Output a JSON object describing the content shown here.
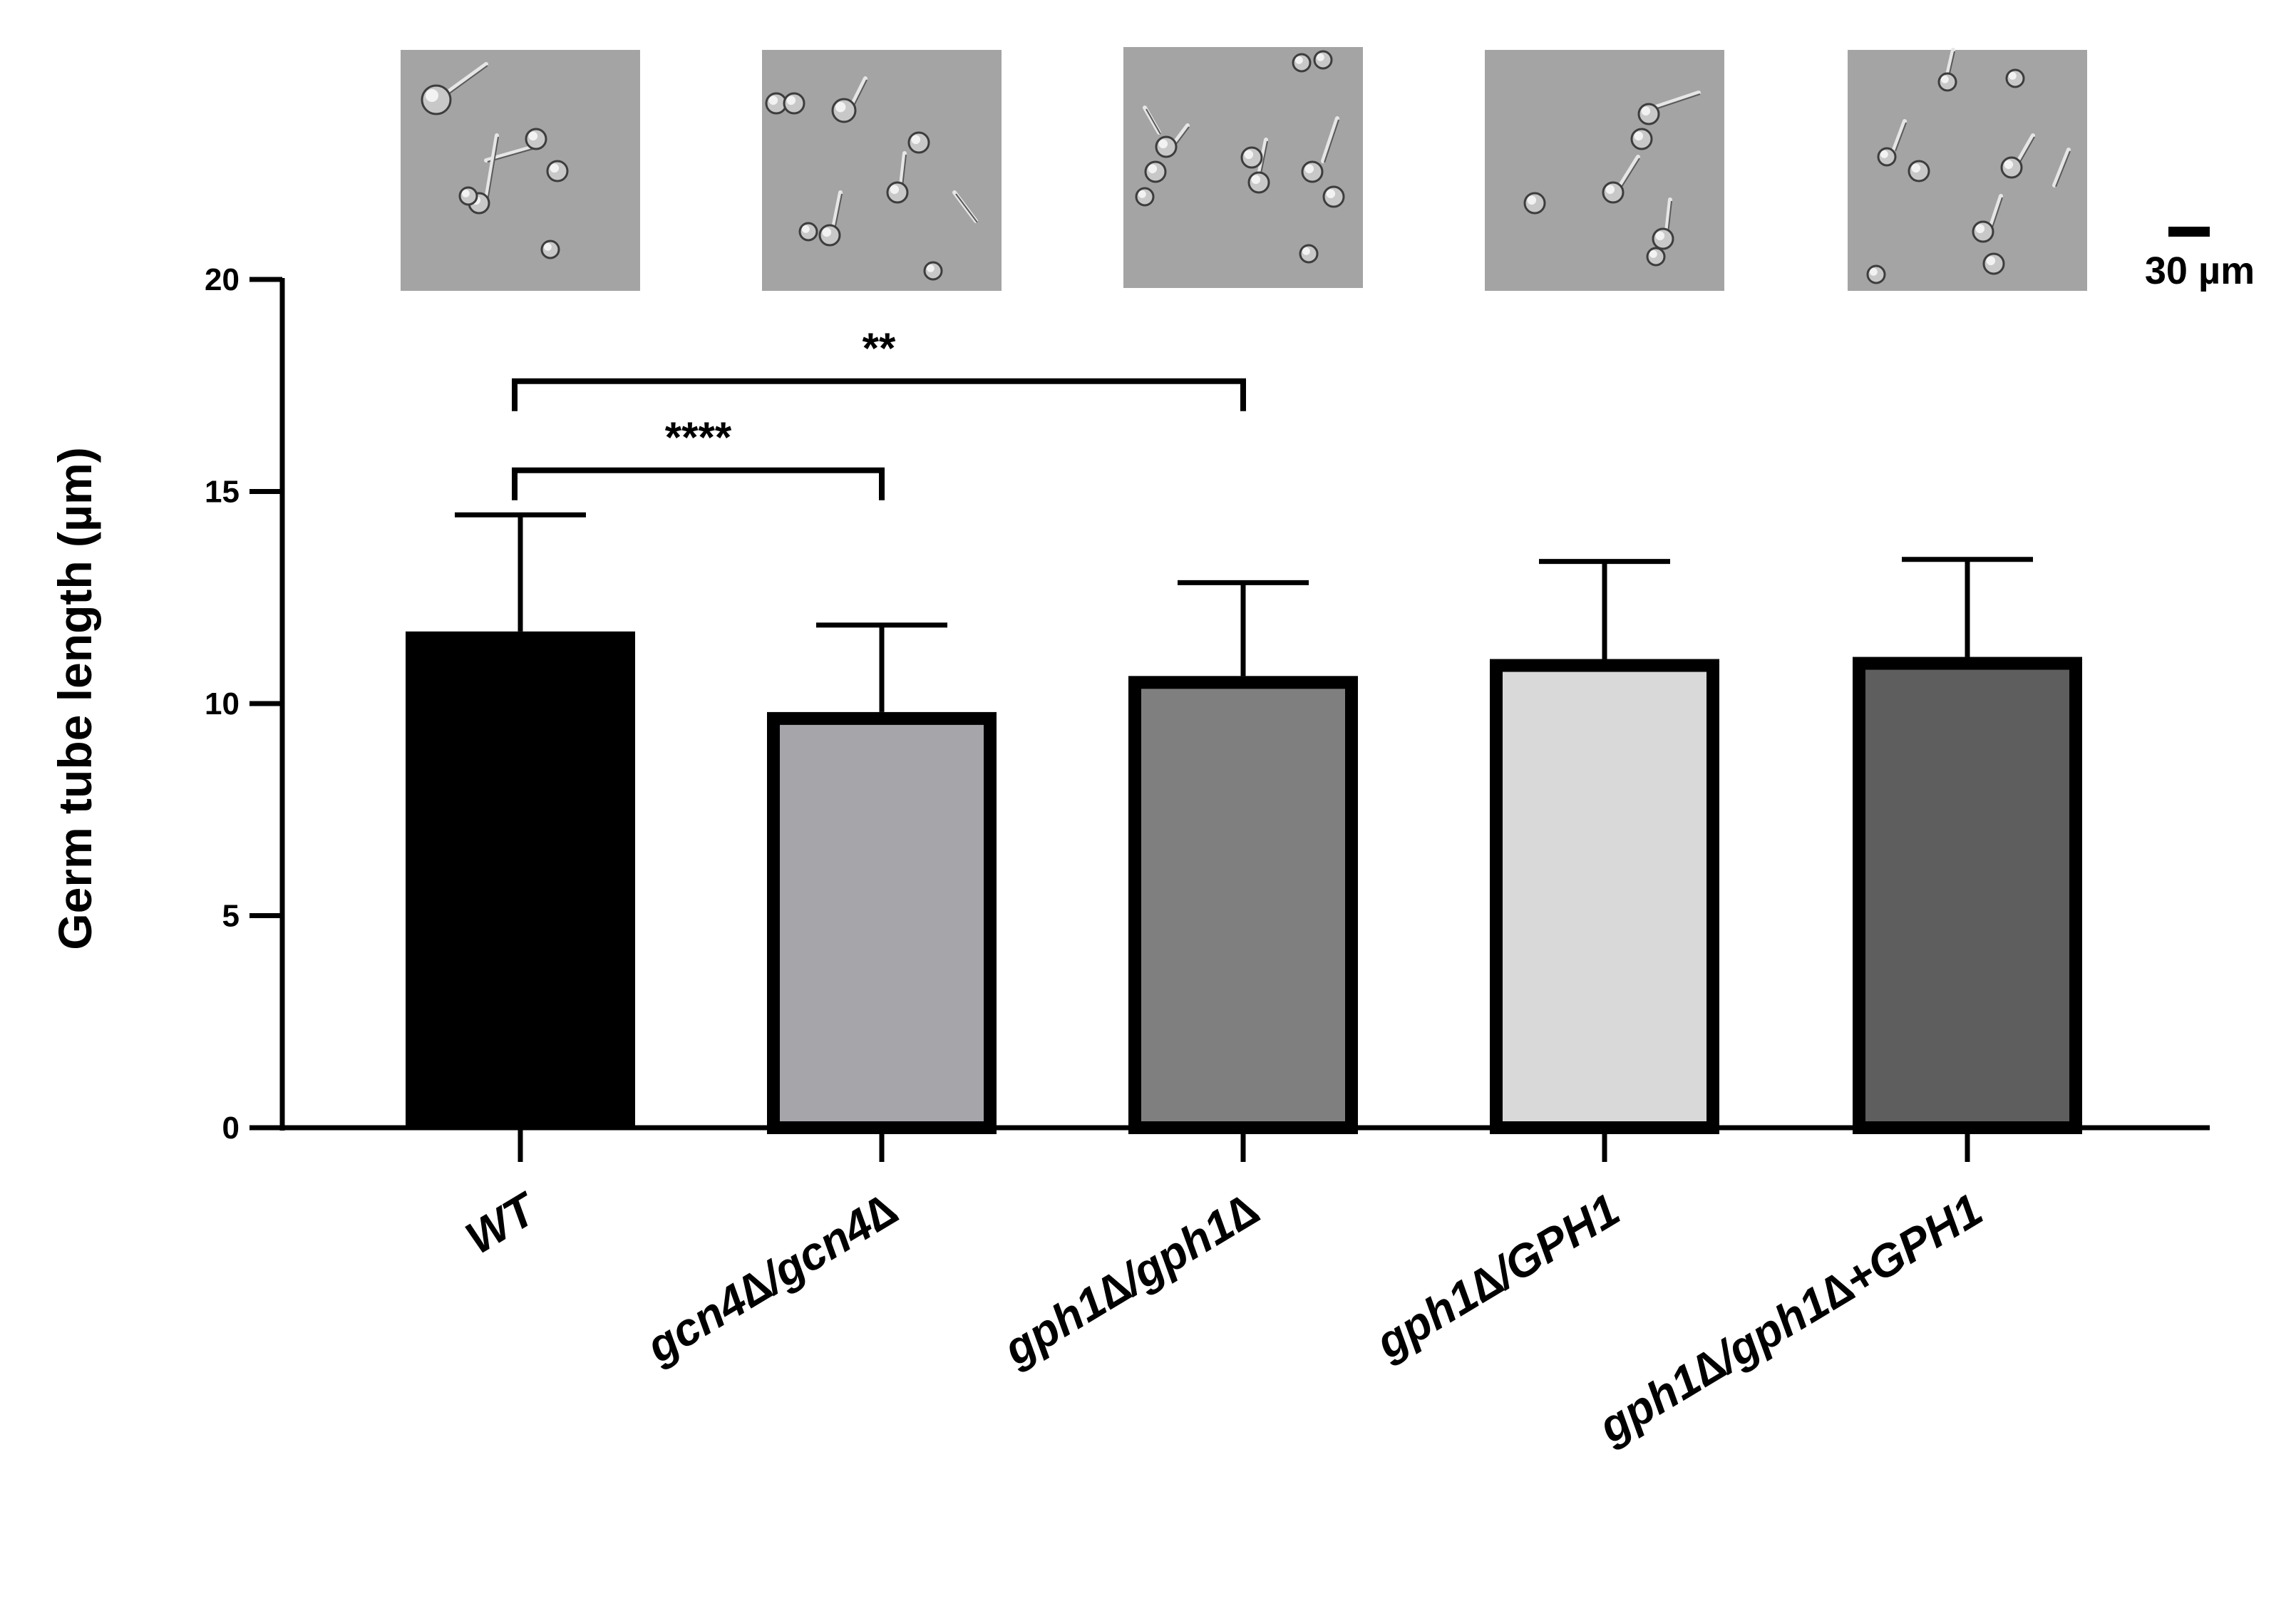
{
  "chart_data": {
    "type": "bar",
    "title": "",
    "xlabel": "",
    "ylabel": "Germ tube  length (µm)",
    "ylim": [
      0,
      20
    ],
    "yticks": [
      "0",
      "5",
      "10",
      "15",
      "20"
    ],
    "grid": false,
    "categories": [
      "WT",
      "gcn4∆/gcn4∆",
      "gph1∆/gph1∆",
      "gph1∆/GPH1",
      "gph1∆/gph1∆+GPH1"
    ],
    "values": [
      11.7,
      9.8,
      10.65,
      11.05,
      11.1
    ],
    "error_plus": [
      2.75,
      2.05,
      2.2,
      2.3,
      2.3
    ],
    "bar_colors": [
      "#000000",
      "#a6a5aa",
      "#7f7f7f",
      "#d9d9d9",
      "#5e5e5e"
    ],
    "significance": [
      {
        "from": "WT",
        "to": "gcn4∆/gcn4∆",
        "label": "****",
        "y": 15.5
      },
      {
        "from": "WT",
        "to": "gph1∆/gph1∆",
        "label": "**",
        "y": 17.6
      }
    ],
    "micrographs": [
      "WT micrograph",
      "gcn4∆/gcn4∆ micrograph",
      "gph1∆/gph1∆ micrograph",
      "gph1∆/GPH1 micrograph",
      "gph1∆/gph1∆+GPH1 micrograph"
    ],
    "scale_bar_label": "30 µm"
  }
}
